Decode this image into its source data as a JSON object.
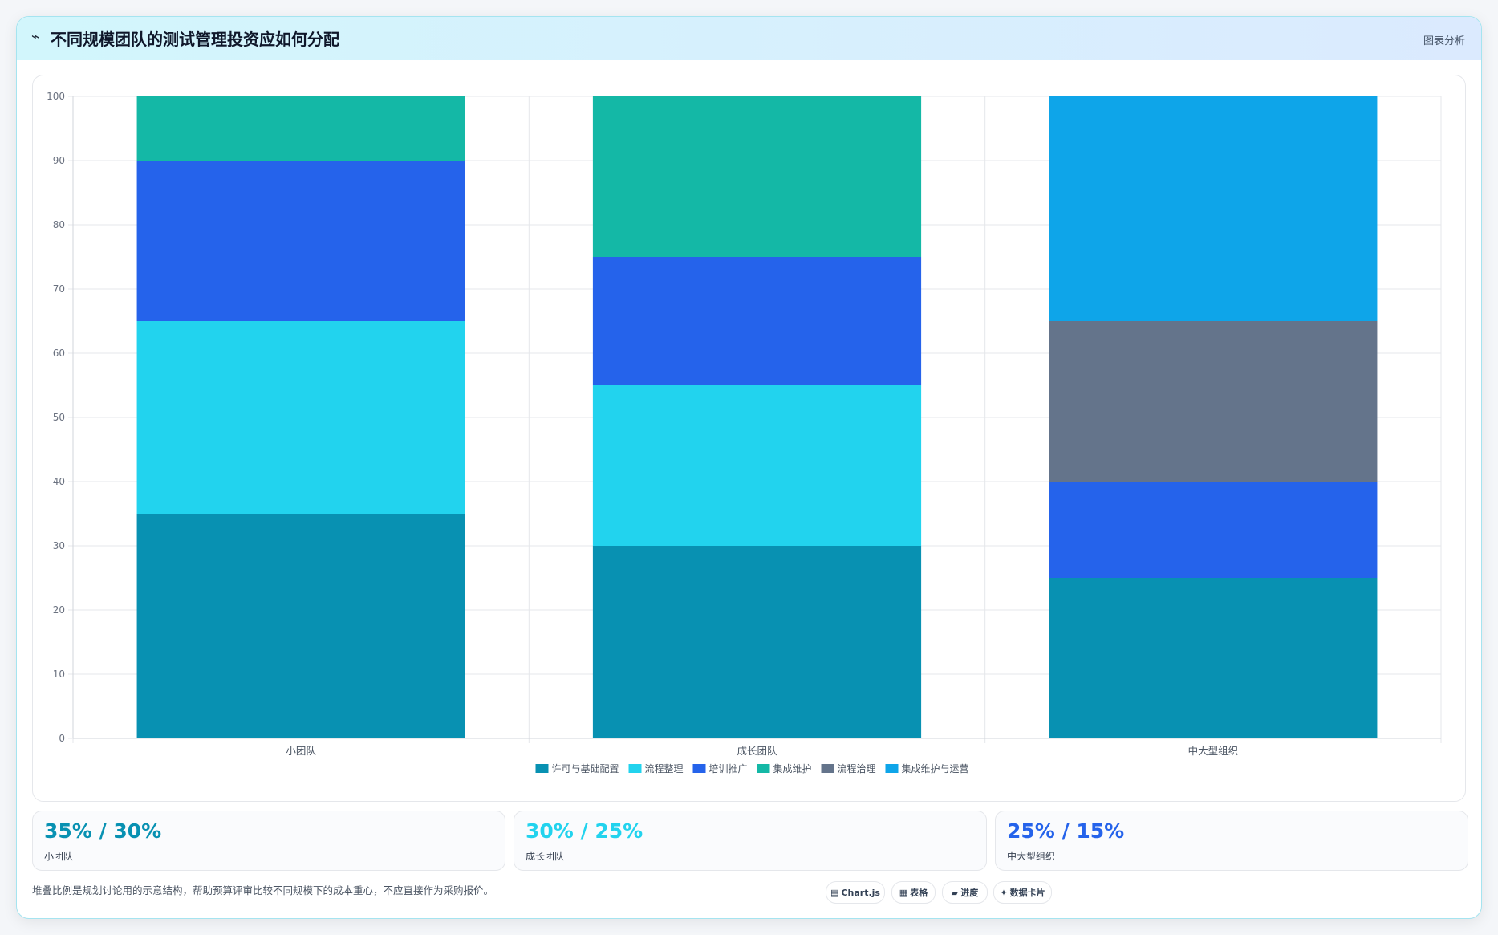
{
  "header": {
    "title": "不同规模团队的测试管理投资应如何分配",
    "tag": "图表分析"
  },
  "chart_data": {
    "type": "bar",
    "stacked": true,
    "categories": [
      "小团队",
      "成长团队",
      "中大型组织"
    ],
    "yticks": [
      "0",
      "10",
      "20",
      "30",
      "40",
      "50",
      "60",
      "70",
      "80",
      "90",
      "100"
    ],
    "ylim": [
      0,
      100
    ],
    "grid": true,
    "legend_position": "bottom",
    "series": [
      {
        "name": "许可与基础配置",
        "color": "#0891b2",
        "values": [
          35,
          30,
          25
        ]
      },
      {
        "name": "流程整理",
        "color": "#22d3ee",
        "values": [
          30,
          25,
          0
        ]
      },
      {
        "name": "培训推广",
        "color": "#2563eb",
        "values": [
          25,
          20,
          15
        ]
      },
      {
        "name": "集成维护",
        "color": "#14b8a6",
        "values": [
          10,
          25,
          0
        ]
      },
      {
        "name": "流程治理",
        "color": "#64748b",
        "values": [
          0,
          0,
          25
        ]
      },
      {
        "name": "集成维护与运营",
        "color": "#0ea5e9",
        "values": [
          0,
          0,
          35
        ]
      }
    ]
  },
  "kpis": [
    {
      "value": "35% / 30%",
      "label": "小团队",
      "color": "#0891b2"
    },
    {
      "value": "30% / 25%",
      "label": "成长团队",
      "color": "#22d3ee"
    },
    {
      "value": "25% / 15%",
      "label": "中大型组织",
      "color": "#2563eb"
    }
  ],
  "footer": {
    "note": "堆叠比例是规划讨论用的示意结构，帮助预算评审比较不同规模下的成本重心，不应直接作为采购报价。",
    "pills": [
      {
        "icon": "▤",
        "label": "Chart.js"
      },
      {
        "icon": "▦",
        "label": "表格"
      },
      {
        "icon": "▰",
        "label": "进度"
      },
      {
        "icon": "✦",
        "label": "数据卡片"
      }
    ]
  }
}
